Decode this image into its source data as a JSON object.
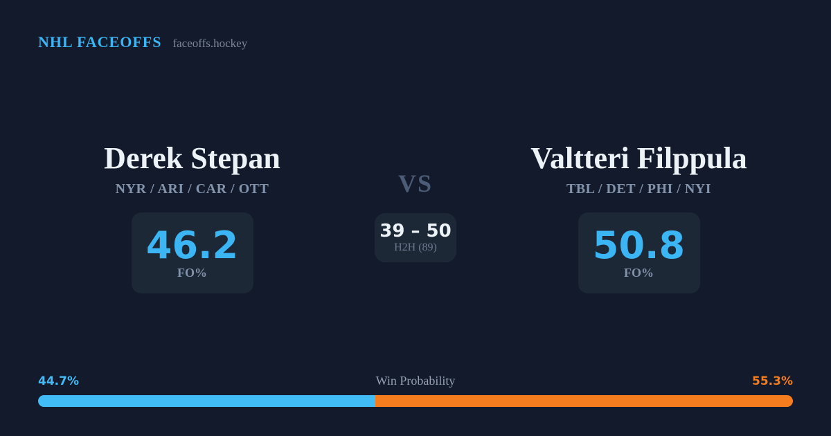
{
  "page": {
    "bg_color": "#121a2b",
    "card_color": "#1d2837",
    "accent_blue": "#3cb5f4",
    "bar_blue": "#41bcf7",
    "accent_orange": "#f57d1e"
  },
  "header": {
    "brand": "NHL FACEOFFS",
    "site": "faceoffs.hockey"
  },
  "matchup": {
    "vs_label": "VS",
    "h2h": {
      "score": "39 – 50",
      "label": "H2H (89)"
    },
    "left_player": {
      "name": "Derek Stepan",
      "teams": "NYR / ARI / CAR / OTT",
      "fo_value": "46.2",
      "fo_label": "FO%"
    },
    "right_player": {
      "name": "Valtteri Filppula",
      "teams": "TBL / DET / PHI / NYI",
      "fo_value": "50.8",
      "fo_label": "FO%"
    }
  },
  "win_probability": {
    "title": "Win Probability",
    "left_pct_label": "44.7%",
    "right_pct_label": "55.3%",
    "left_value": 44.7,
    "right_value": 55.3
  },
  "chart_data": {
    "type": "bar",
    "title": "Win Probability",
    "categories": [
      "Derek Stepan",
      "Valtteri Filppula"
    ],
    "values": [
      44.7,
      55.3
    ],
    "colors": [
      "#41bcf7",
      "#f57d1e"
    ],
    "unit": "%"
  }
}
